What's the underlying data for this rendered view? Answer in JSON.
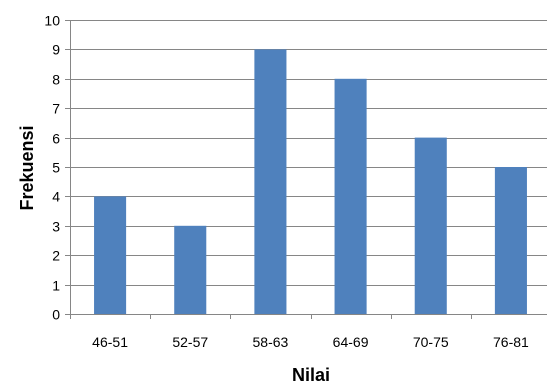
{
  "chart_data": {
    "type": "bar",
    "categories": [
      "46-51",
      "52-57",
      "58-63",
      "64-69",
      "70-75",
      "76-81"
    ],
    "values": [
      4,
      3,
      9,
      8,
      6,
      5
    ],
    "title": "",
    "xlabel": "Nilai",
    "ylabel": "Frekuensi",
    "ylim": [
      0,
      10
    ],
    "yticks": [
      0,
      1,
      2,
      3,
      4,
      5,
      6,
      7,
      8,
      9,
      10
    ],
    "grid": true,
    "legend": "none",
    "bar_color": "#4F81BD",
    "grid_color": "#868686"
  }
}
